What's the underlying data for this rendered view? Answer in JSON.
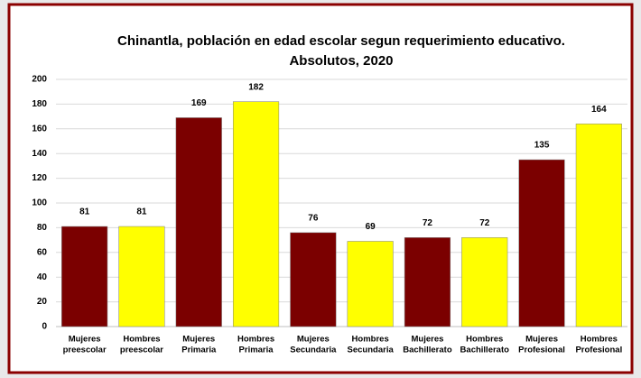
{
  "chart_data": {
    "type": "bar",
    "title": [
      "Chinantla, población en edad escolar segun requerimiento educativo.",
      "Absolutos, 2020"
    ],
    "categories": [
      [
        "Mujeres",
        "preescolar"
      ],
      [
        "Hombres",
        "preescolar"
      ],
      [
        "Mujeres",
        "Primaria"
      ],
      [
        "Hombres",
        "Primaria"
      ],
      [
        "Mujeres",
        "Secundaria"
      ],
      [
        "Hombres",
        "Secundaria"
      ],
      [
        "Mujeres",
        "Bachillerato"
      ],
      [
        "Hombres",
        "Bachillerato"
      ],
      [
        "Mujeres",
        "Profesional"
      ],
      [
        "Hombres",
        "Profesional"
      ]
    ],
    "values": [
      81,
      81,
      169,
      182,
      76,
      69,
      72,
      72,
      135,
      164
    ],
    "colors": [
      "#7b0000",
      "#ffff00",
      "#7b0000",
      "#ffff00",
      "#7b0000",
      "#ffff00",
      "#7b0000",
      "#ffff00",
      "#7b0000",
      "#ffff00"
    ],
    "ylim": [
      0,
      200
    ],
    "yticks": [
      0,
      20,
      40,
      60,
      80,
      100,
      120,
      140,
      160,
      180,
      200
    ],
    "grid": true
  }
}
